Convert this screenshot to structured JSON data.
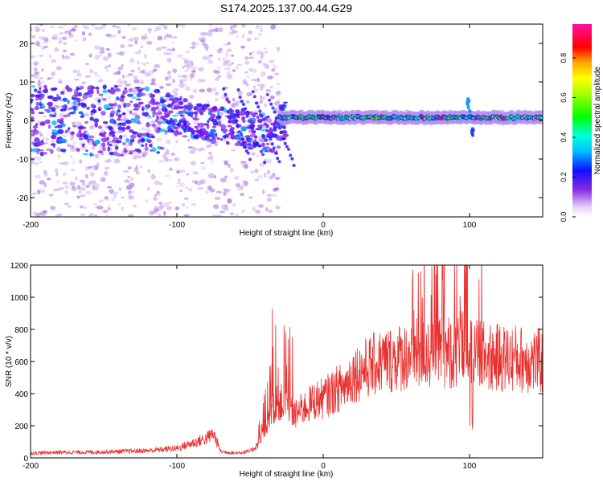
{
  "title": "S174.2025.137.00.44.G29",
  "chart_data": [
    {
      "type": "heatmap",
      "xlabel": "Height of straight line (km)",
      "ylabel": "Frequency (Hz)",
      "xlim": [
        -200,
        150
      ],
      "ylim": [
        -25,
        25
      ],
      "xticks": [
        -200,
        -100,
        0,
        100
      ],
      "yticks": [
        -20,
        -10,
        0,
        10,
        20
      ],
      "colorbar": {
        "label": "Normalized spectral amplitude",
        "range": [
          0,
          0.97
        ],
        "ticks": [
          0.0,
          0.2,
          0.4,
          0.6,
          0.8
        ]
      },
      "colors": {
        "low": "#b28ce0",
        "mid_low": "#7a10f0",
        "mid": "#1414ff",
        "cyan": "#00e6ff",
        "green": "#00ff00",
        "yellow": "#ffff00",
        "red": "#ff0000",
        "high": "#ff00a0"
      }
    },
    {
      "type": "line",
      "xlabel": "Height of straight line (km)",
      "ylabel": "SNR (10 * v/v)",
      "xlim": [
        -200,
        150
      ],
      "ylim": [
        0,
        1200
      ],
      "xticks": [
        -200,
        -100,
        0,
        100
      ],
      "yticks": [
        0,
        200,
        400,
        600,
        800,
        1000,
        1200
      ],
      "line_color": "#e8302e",
      "series": [
        {
          "x": [
            -200,
            -180,
            -160,
            -140,
            -120,
            -100,
            -90,
            -80,
            -75,
            -70,
            -60,
            -50,
            -45,
            -40,
            -35,
            -30,
            -25,
            -20,
            -15,
            -10,
            -5,
            0,
            5,
            10,
            15,
            20,
            25,
            30,
            40,
            50,
            60,
            70,
            80,
            90,
            95,
            100,
            105,
            110,
            120,
            130,
            140,
            150
          ],
          "values": [
            30,
            35,
            35,
            40,
            45,
            60,
            90,
            120,
            150,
            40,
            30,
            40,
            80,
            150,
            300,
            350,
            330,
            260,
            300,
            330,
            360,
            370,
            400,
            430,
            450,
            520,
            540,
            560,
            600,
            620,
            640,
            650,
            660,
            660,
            680,
            650,
            640,
            630,
            620,
            620,
            610,
            600
          ]
        }
      ]
    }
  ]
}
